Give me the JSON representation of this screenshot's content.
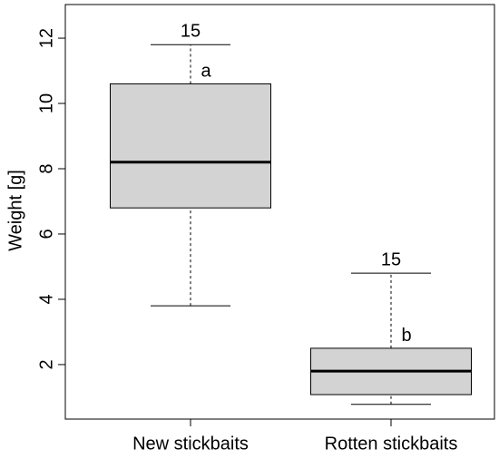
{
  "chart_data": {
    "type": "boxplot",
    "y_label": "Weight [g]",
    "categories": [
      "New stickbaits",
      "Rotten stickbaits"
    ],
    "boxes": [
      {
        "min": 3.8,
        "q1": 6.8,
        "median": 8.2,
        "q3": 10.6,
        "max": 11.8
      },
      {
        "min": 0.78,
        "q1": 1.08,
        "median": 1.8,
        "q3": 2.5,
        "max": 4.8
      }
    ],
    "top_labels": [
      "15",
      "15"
    ],
    "group_letters": [
      "a",
      "b"
    ],
    "color": "#d3d3d3",
    "ylim": [
      0.33,
      13.03
    ],
    "yticks": [
      2,
      4,
      6,
      8,
      10,
      12
    ]
  }
}
